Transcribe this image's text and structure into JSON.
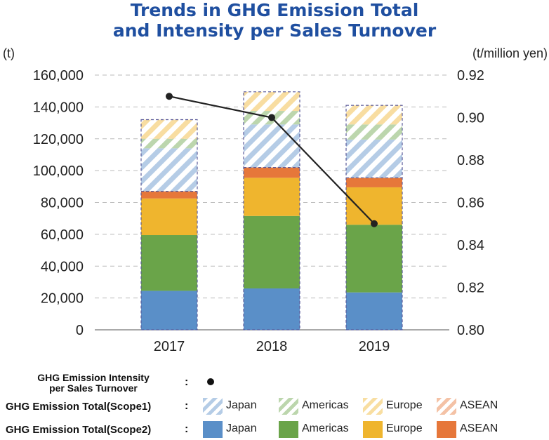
{
  "title_line1": "Trends in GHG Emission Total",
  "title_line2": "and Intensity per Sales Turnover",
  "chart_data": {
    "type": "bar",
    "categories": [
      "2017",
      "2018",
      "2019"
    ],
    "left_axis": {
      "label": "(t)",
      "ylim": [
        0,
        160000
      ],
      "ticks": [
        "0",
        "20,000",
        "40,000",
        "60,000",
        "80,000",
        "100,000",
        "120,000",
        "140,000",
        "160,000"
      ]
    },
    "right_axis": {
      "label": "(t/million yen)",
      "ylim": [
        0.8,
        0.92
      ],
      "ticks": [
        "0.80",
        "0.82",
        "0.84",
        "0.86",
        "0.88",
        "0.90",
        "0.92"
      ]
    },
    "stacked": true,
    "series": [
      {
        "name": "Japan",
        "group": "Scope2",
        "values": [
          24500,
          26000,
          23500
        ],
        "color": "#5a8fc8",
        "hatched": false
      },
      {
        "name": "Americas",
        "group": "Scope2",
        "values": [
          35000,
          45500,
          42500
        ],
        "color": "#6aa449",
        "hatched": false
      },
      {
        "name": "Europe",
        "group": "Scope2",
        "values": [
          23000,
          24000,
          23500
        ],
        "color": "#efb52e",
        "hatched": false
      },
      {
        "name": "ASEAN",
        "group": "Scope2",
        "values": [
          4500,
          6500,
          6000
        ],
        "color": "#e6773a",
        "hatched": false
      },
      {
        "name": "Japan",
        "group": "Scope1",
        "values": [
          27000,
          27000,
          24000
        ],
        "color": "#5a8fc8",
        "hatched": true
      },
      {
        "name": "Americas",
        "group": "Scope1",
        "values": [
          6000,
          8500,
          9500
        ],
        "color": "#6aa449",
        "hatched": true
      },
      {
        "name": "Europe",
        "group": "Scope1",
        "values": [
          12000,
          12000,
          12000
        ],
        "color": "#efb52e",
        "hatched": true
      }
    ],
    "line_series": {
      "axis": "right",
      "values": [
        0.91,
        0.9,
        0.85
      ],
      "color": "#222222"
    },
    "grid": true
  },
  "legend": {
    "intensity_label_line1": "GHG Emission Intensity",
    "intensity_label_line2": "per Sales Turnover",
    "scope1_label": "GHG Emission Total(Scope1)",
    "scope2_label": "GHG Emission Total(Scope2)",
    "colon": ":",
    "items": [
      {
        "name": "Japan",
        "color": "#5a8fc8"
      },
      {
        "name": "Americas",
        "color": "#6aa449"
      },
      {
        "name": "Europe",
        "color": "#efb52e"
      },
      {
        "name": "ASEAN",
        "color": "#e6773a"
      }
    ]
  }
}
